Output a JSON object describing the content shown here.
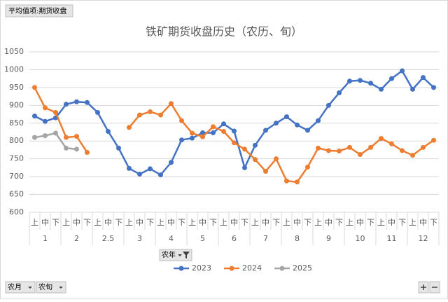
{
  "pivot_buttons": {
    "value_field": "平均值项:期货收盘",
    "legend_field": "农年",
    "axis_fields": [
      "农月",
      "农旬"
    ]
  },
  "chart_data": {
    "type": "line",
    "title": "铁矿期货收盘历史（农历、旬）",
    "category_groups": [
      {
        "name": "1",
        "categories": [
          "上",
          "中",
          "下"
        ]
      },
      {
        "name": "2",
        "categories": [
          "上",
          "中",
          "下"
        ]
      },
      {
        "name": "2.5",
        "categories": [
          "上",
          "中",
          "下"
        ]
      },
      {
        "name": "3",
        "categories": [
          "上",
          "中",
          "下"
        ]
      },
      {
        "name": "4",
        "categories": [
          "上",
          "中",
          "下"
        ]
      },
      {
        "name": "5",
        "categories": [
          "上",
          "中",
          "下"
        ]
      },
      {
        "name": "6",
        "categories": [
          "上",
          "中",
          "下"
        ]
      },
      {
        "name": "7",
        "categories": [
          "上",
          "中",
          "下"
        ]
      },
      {
        "name": "8",
        "categories": [
          "上",
          "中",
          "下"
        ]
      },
      {
        "name": "9",
        "categories": [
          "上",
          "中",
          "下"
        ]
      },
      {
        "name": "10",
        "categories": [
          "上",
          "中",
          "下"
        ]
      },
      {
        "name": "11",
        "categories": [
          "上",
          "中",
          "下"
        ]
      },
      {
        "name": "12",
        "categories": [
          "上",
          "中",
          "下"
        ]
      }
    ],
    "series": [
      {
        "name": "2023",
        "color": "#4472c4",
        "values": [
          870,
          855,
          865,
          903,
          910,
          908,
          880,
          827,
          780,
          723,
          707,
          722,
          705,
          740,
          803,
          808,
          823,
          823,
          848,
          828,
          725,
          788,
          830,
          850,
          868,
          845,
          830,
          857,
          900,
          935,
          968,
          970,
          962,
          945,
          975,
          997,
          945,
          978,
          950
        ]
      },
      {
        "name": "2024",
        "color": "#ed7d31",
        "values": [
          950,
          893,
          880,
          810,
          813,
          768,
          null,
          null,
          null,
          838,
          873,
          882,
          873,
          905,
          857,
          822,
          812,
          840,
          827,
          795,
          777,
          748,
          715,
          750,
          688,
          685,
          727,
          780,
          773,
          772,
          782,
          762,
          782,
          807,
          792,
          773,
          760,
          782,
          802
        ]
      },
      {
        "name": "2025",
        "color": "#a5a5a5",
        "values": [
          810,
          815,
          822,
          780,
          777,
          null,
          null,
          null,
          null,
          null,
          null,
          null,
          null,
          null,
          null,
          null,
          null,
          null,
          null,
          null,
          null,
          null,
          null,
          null,
          null,
          null,
          null,
          null,
          null,
          null,
          null,
          null,
          null,
          null,
          null,
          null,
          null,
          null,
          null
        ]
      }
    ],
    "ylim": [
      600,
      1050
    ],
    "yticks": [
      600,
      650,
      700,
      750,
      800,
      850,
      900,
      950,
      1000,
      1050
    ],
    "grid": true,
    "legend": "bottom"
  }
}
